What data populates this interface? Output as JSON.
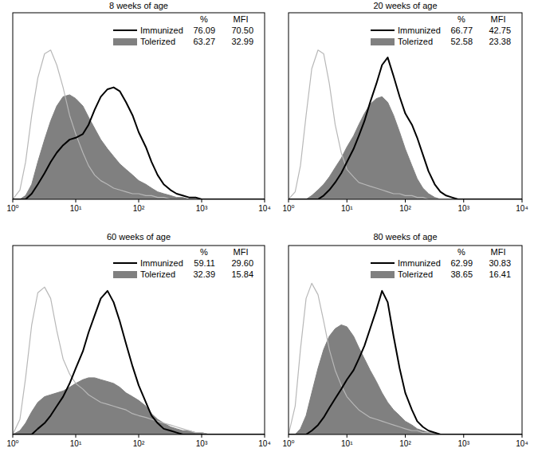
{
  "chart_data": [
    {
      "type": "line",
      "title": "8 weeks of age",
      "log": "x",
      "legend": "top-right",
      "tick_labels": "x",
      "xlim": [
        1,
        10000
      ],
      "ylim": [
        0,
        100
      ],
      "xticks": [
        {
          "value": 1,
          "label": "10⁰"
        },
        {
          "value": 10,
          "label": "10¹"
        },
        {
          "value": 100,
          "label": "10²"
        },
        {
          "value": 1000,
          "label": "10³"
        },
        {
          "value": 10000,
          "label": "10⁴"
        }
      ],
      "stat_headers": [
        "%",
        "MFI"
      ],
      "x": [
        1,
        1.3,
        1.6,
        2,
        2.5,
        3.2,
        4,
        5,
        6.3,
        8,
        10,
        13,
        16,
        20,
        25,
        32,
        40,
        50,
        63,
        80,
        100,
        130,
        160,
        200,
        250,
        320,
        400,
        500,
        630,
        800,
        1000,
        1300,
        1600,
        2000,
        2500,
        3200,
        4000,
        5000,
        6300,
        8000,
        10000
      ],
      "series": [
        {
          "name": "Immunized",
          "type": "line",
          "color": "#000000",
          "stats": [
            76.09,
            70.5
          ],
          "stat_labels": [
            "76.09",
            "70.50"
          ],
          "values": [
            0,
            0,
            0,
            3,
            8,
            14,
            20,
            25,
            29,
            32,
            33,
            35,
            40,
            48,
            55,
            59,
            60,
            58,
            52,
            45,
            36,
            28,
            20,
            13,
            8,
            5,
            3,
            2,
            1,
            1,
            0,
            0,
            0,
            0,
            0,
            0,
            0,
            0,
            0,
            0,
            0
          ]
        },
        {
          "name": "Tolerized",
          "type": "area",
          "color": "#808080",
          "stats": [
            63.27,
            32.99
          ],
          "stat_labels": [
            "63.27",
            "32.99"
          ],
          "values": [
            0,
            0,
            2,
            8,
            20,
            32,
            42,
            50,
            55,
            56,
            54,
            50,
            44,
            38,
            32,
            27,
            23,
            19,
            16,
            13,
            10,
            8,
            6,
            4,
            3,
            2,
            1,
            1,
            0,
            0,
            0,
            0,
            0,
            0,
            0,
            0,
            0,
            0,
            0,
            0,
            0
          ]
        },
        {
          "type": "line",
          "color": "#b8b8b8",
          "values": [
            0,
            5,
            20,
            45,
            65,
            78,
            80,
            72,
            60,
            45,
            35,
            25,
            18,
            13,
            10,
            8,
            6,
            5,
            4,
            3,
            3,
            2,
            2,
            1,
            1,
            0,
            0,
            0,
            0,
            0,
            0,
            0,
            0,
            0,
            0,
            0,
            0,
            0,
            0,
            0,
            0
          ]
        }
      ]
    },
    {
      "type": "line",
      "title": "20 weeks of age",
      "log": "x",
      "legend": "top-right",
      "tick_labels": "x",
      "xlim": [
        1,
        10000
      ],
      "ylim": [
        0,
        100
      ],
      "xticks": [
        {
          "value": 1,
          "label": "10⁰"
        },
        {
          "value": 10,
          "label": "10¹"
        },
        {
          "value": 100,
          "label": "10²"
        },
        {
          "value": 1000,
          "label": "10³"
        },
        {
          "value": 10000,
          "label": "10⁴"
        }
      ],
      "stat_headers": [
        "%",
        "MFI"
      ],
      "x": [
        1,
        1.3,
        1.6,
        2,
        2.5,
        3.2,
        4,
        5,
        6.3,
        8,
        10,
        13,
        16,
        20,
        25,
        32,
        40,
        50,
        63,
        80,
        100,
        130,
        160,
        200,
        250,
        320,
        400,
        500,
        630,
        800,
        1000,
        1300,
        1600,
        2000,
        2500,
        3200,
        4000,
        5000,
        6300,
        8000,
        10000
      ],
      "series": [
        {
          "name": "Immunized",
          "type": "line",
          "color": "#000000",
          "stats": [
            66.77,
            42.75
          ],
          "stat_labels": [
            "66.77",
            "42.75"
          ],
          "values": [
            0,
            0,
            0,
            0,
            0,
            0,
            2,
            5,
            9,
            14,
            20,
            27,
            34,
            42,
            52,
            62,
            72,
            76,
            66,
            55,
            46,
            40,
            33,
            24,
            15,
            8,
            4,
            2,
            1,
            0,
            0,
            0,
            0,
            0,
            0,
            0,
            0,
            0,
            0,
            0,
            0
          ]
        },
        {
          "name": "Tolerized",
          "type": "area",
          "color": "#808080",
          "stats": [
            52.58,
            23.38
          ],
          "stat_labels": [
            "52.58",
            "23.38"
          ],
          "values": [
            0,
            0,
            0,
            0,
            2,
            5,
            8,
            12,
            17,
            22,
            28,
            34,
            40,
            46,
            51,
            54,
            55,
            52,
            45,
            36,
            27,
            18,
            11,
            6,
            3,
            1,
            0,
            0,
            0,
            0,
            0,
            0,
            0,
            0,
            0,
            0,
            0,
            0,
            0,
            0,
            0
          ]
        },
        {
          "type": "line",
          "color": "#b8b8b8",
          "values": [
            0,
            4,
            18,
            45,
            70,
            80,
            78,
            62,
            40,
            25,
            16,
            12,
            9,
            8,
            7,
            6,
            5,
            4,
            3,
            3,
            2,
            2,
            1,
            1,
            0,
            0,
            0,
            0,
            0,
            0,
            0,
            0,
            0,
            0,
            0,
            0,
            0,
            0,
            0,
            0,
            0
          ]
        }
      ]
    },
    {
      "type": "line",
      "title": "60 weeks of age",
      "log": "x",
      "legend": "top-right",
      "tick_labels": "x",
      "xlim": [
        1,
        10000
      ],
      "ylim": [
        0,
        100
      ],
      "xticks": [
        {
          "value": 1,
          "label": "10⁰"
        },
        {
          "value": 10,
          "label": "10¹"
        },
        {
          "value": 100,
          "label": "10²"
        },
        {
          "value": 1000,
          "label": "10³"
        },
        {
          "value": 10000,
          "label": "10⁴"
        }
      ],
      "stat_headers": [
        "%",
        "MFI"
      ],
      "x": [
        1,
        1.3,
        1.6,
        2,
        2.5,
        3.2,
        4,
        5,
        6.3,
        8,
        10,
        13,
        16,
        20,
        25,
        32,
        40,
        50,
        63,
        80,
        100,
        130,
        160,
        200,
        250,
        320,
        400,
        500,
        630,
        800,
        1000,
        1300,
        1600,
        2000,
        2500,
        3200,
        4000,
        5000,
        6300,
        8000,
        10000
      ],
      "series": [
        {
          "name": "Immunized",
          "type": "line",
          "color": "#000000",
          "stats": [
            59.11,
            29.6
          ],
          "stat_labels": [
            "59.11",
            "29.60"
          ],
          "values": [
            0,
            0,
            0,
            0,
            3,
            6,
            10,
            15,
            20,
            27,
            35,
            44,
            54,
            63,
            72,
            76,
            70,
            60,
            48,
            36,
            26,
            17,
            10,
            6,
            3,
            2,
            1,
            0,
            0,
            0,
            0,
            0,
            0,
            0,
            0,
            0,
            0,
            0,
            0,
            0,
            0
          ]
        },
        {
          "name": "Tolerized",
          "type": "area",
          "color": "#808080",
          "stats": [
            32.39,
            15.84
          ],
          "stat_labels": [
            "32.39",
            "15.84"
          ],
          "values": [
            0,
            2,
            6,
            12,
            17,
            20,
            21,
            22,
            23,
            25,
            27,
            29,
            30,
            30,
            29,
            28,
            27,
            25,
            22,
            20,
            18,
            15,
            11,
            8,
            6,
            4,
            3,
            2,
            2,
            1,
            1,
            0,
            0,
            0,
            0,
            0,
            0,
            0,
            0,
            0,
            0
          ]
        },
        {
          "type": "line",
          "color": "#b8b8b8",
          "values": [
            0,
            8,
            30,
            58,
            75,
            78,
            72,
            55,
            40,
            32,
            27,
            24,
            21,
            19,
            17,
            16,
            15,
            14,
            13,
            11,
            10,
            9,
            8,
            7,
            6,
            5,
            4,
            3,
            2,
            1,
            1,
            0,
            0,
            0,
            0,
            0,
            0,
            0,
            0,
            0,
            0
          ]
        }
      ]
    },
    {
      "type": "line",
      "title": "80 weeks of age",
      "log": "x",
      "legend": "top-right",
      "tick_labels": "x",
      "xlim": [
        1,
        10000
      ],
      "ylim": [
        0,
        100
      ],
      "xticks": [
        {
          "value": 1,
          "label": "10⁰"
        },
        {
          "value": 10,
          "label": "10¹"
        },
        {
          "value": 100,
          "label": "10²"
        },
        {
          "value": 1000,
          "label": "10³"
        },
        {
          "value": 10000,
          "label": "10⁴"
        }
      ],
      "stat_headers": [
        "%",
        "MFI"
      ],
      "x": [
        1,
        1.3,
        1.6,
        2,
        2.5,
        3.2,
        4,
        5,
        6.3,
        8,
        10,
        13,
        16,
        20,
        25,
        32,
        40,
        50,
        63,
        80,
        100,
        130,
        160,
        200,
        250,
        320,
        400,
        500,
        630,
        800,
        1000,
        1300,
        1600,
        2000,
        2500,
        3200,
        4000,
        5000,
        6300,
        8000,
        10000
      ],
      "series": [
        {
          "name": "Immunized",
          "type": "line",
          "color": "#000000",
          "stats": [
            62.99,
            30.83
          ],
          "stat_labels": [
            "62.99",
            "30.83"
          ],
          "values": [
            0,
            0,
            0,
            0,
            2,
            5,
            9,
            14,
            19,
            24,
            29,
            34,
            40,
            47,
            56,
            66,
            76,
            70,
            52,
            35,
            22,
            13,
            7,
            4,
            2,
            1,
            0,
            0,
            0,
            0,
            0,
            0,
            0,
            0,
            0,
            0,
            0,
            0,
            0,
            0,
            0
          ]
        },
        {
          "name": "Tolerized",
          "type": "area",
          "color": "#808080",
          "stats": [
            38.65,
            16.41
          ],
          "stat_labels": [
            "38.65",
            "16.41"
          ],
          "values": [
            0,
            0,
            3,
            10,
            22,
            35,
            45,
            52,
            56,
            58,
            57,
            52,
            46,
            40,
            34,
            28,
            22,
            17,
            13,
            10,
            7,
            5,
            3,
            2,
            1,
            1,
            0,
            0,
            0,
            0,
            0,
            0,
            0,
            0,
            0,
            0,
            0,
            0,
            0,
            0,
            0
          ]
        },
        {
          "type": "line",
          "color": "#b8b8b8",
          "values": [
            0,
            15,
            45,
            72,
            80,
            74,
            60,
            45,
            34,
            26,
            20,
            16,
            13,
            11,
            9,
            8,
            7,
            6,
            5,
            4,
            3,
            2,
            2,
            1,
            1,
            0,
            0,
            0,
            0,
            0,
            0,
            0,
            0,
            0,
            0,
            0,
            0,
            0,
            0,
            0,
            0
          ]
        }
      ]
    }
  ]
}
